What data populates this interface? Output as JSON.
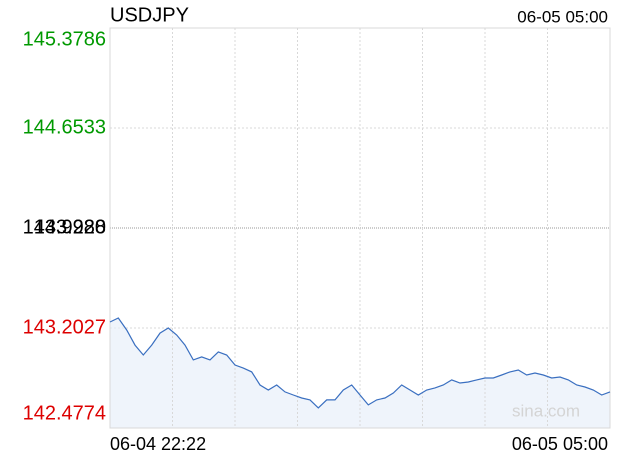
{
  "chart_data": {
    "type": "line",
    "title": "USDJPY",
    "time": "06-05 05:00",
    "watermark": "sina.com",
    "ylim": [
      142.4774,
      145.3786
    ],
    "yticks": [
      142.4774,
      143.2027,
      143.928,
      {
        "value": 143.928,
        "label": "143.9280"
      },
      144.6533,
      145.3786
    ],
    "colors": {
      "up": "#009900",
      "down": "#dd0000",
      "flat": "#000000",
      "line": "#3a6fc0",
      "fill": "#e8effa",
      "grid": "#d8d8d8"
    },
    "categories": [
      "06-04 22:22",
      null,
      null,
      null,
      null,
      null,
      null,
      null,
      null,
      null,
      null,
      null,
      null,
      null,
      null,
      null,
      null,
      null,
      null,
      null,
      null,
      null,
      null,
      null,
      null,
      null,
      null,
      null,
      null,
      null,
      null,
      null,
      null,
      null,
      null,
      null,
      null,
      null,
      null,
      null,
      null,
      null,
      null,
      null,
      null,
      null,
      null,
      null,
      null,
      null,
      null,
      null,
      null,
      null,
      null,
      null,
      null,
      null,
      null,
      null,
      "06-05 05:00"
    ],
    "values": [
      143.246,
      143.275,
      143.188,
      143.079,
      143.007,
      143.079,
      143.166,
      143.203,
      143.152,
      143.079,
      142.971,
      142.993,
      142.971,
      143.029,
      143.007,
      142.934,
      142.912,
      142.884,
      142.789,
      142.753,
      142.789,
      142.739,
      142.717,
      142.695,
      142.681,
      142.623,
      142.681,
      142.681,
      142.753,
      142.789,
      142.717,
      142.645,
      142.681,
      142.695,
      142.731,
      142.789,
      142.753,
      142.717,
      142.753,
      142.768,
      142.789,
      142.826,
      142.804,
      142.811,
      142.826,
      142.84,
      142.84,
      142.862,
      142.884,
      142.898,
      142.862,
      142.876,
      142.862,
      142.84,
      142.847,
      142.826,
      142.789,
      142.775,
      142.753,
      142.717,
      142.739
    ]
  }
}
